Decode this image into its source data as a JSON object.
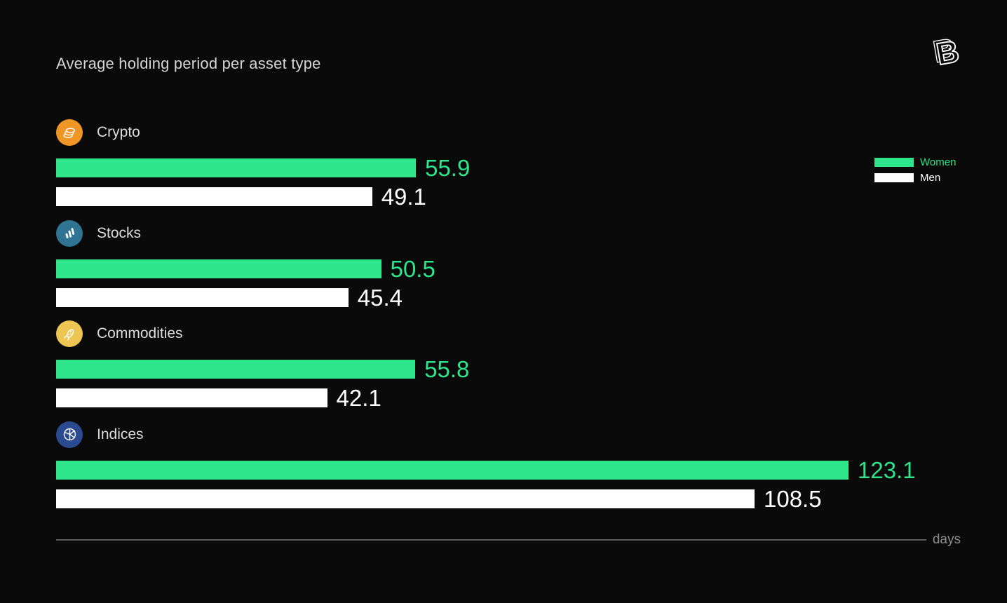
{
  "page": {
    "title": "Average holding period per asset type",
    "logo_letter": "B"
  },
  "colors": {
    "background": "#0a0a0a",
    "women": "#2ee58c",
    "men": "#ffffff",
    "title_text": "#d6d6d6",
    "category_text": "#dcdcdc",
    "axis_line": "#5a5a5a",
    "axis_text": "#8f8f8f"
  },
  "legend": [
    {
      "label": "Women",
      "color": "#2ee58c"
    },
    {
      "label": "Men",
      "color": "#ffffff"
    }
  ],
  "chart_data": {
    "type": "bar",
    "orientation": "horizontal",
    "title": "Average holding period per asset type",
    "xlabel": "days",
    "xlim": [
      0,
      130
    ],
    "grid": false,
    "legend_position": "right",
    "categories": [
      "Crypto",
      "Stocks",
      "Commodities",
      "Indices"
    ],
    "category_icons": [
      {
        "name": "crypto-coins-icon",
        "background": "#ef9726"
      },
      {
        "name": "stocks-bars-icon",
        "background": "#2f7493"
      },
      {
        "name": "commodities-corn-icon",
        "background": "#ecc553"
      },
      {
        "name": "indices-pie-icon",
        "background": "#2c4a90"
      }
    ],
    "series": [
      {
        "name": "Women",
        "color": "#2ee58c",
        "values": [
          55.9,
          50.5,
          55.8,
          123.1
        ]
      },
      {
        "name": "Men",
        "color": "#ffffff",
        "values": [
          49.1,
          45.4,
          42.1,
          108.5
        ]
      }
    ]
  }
}
